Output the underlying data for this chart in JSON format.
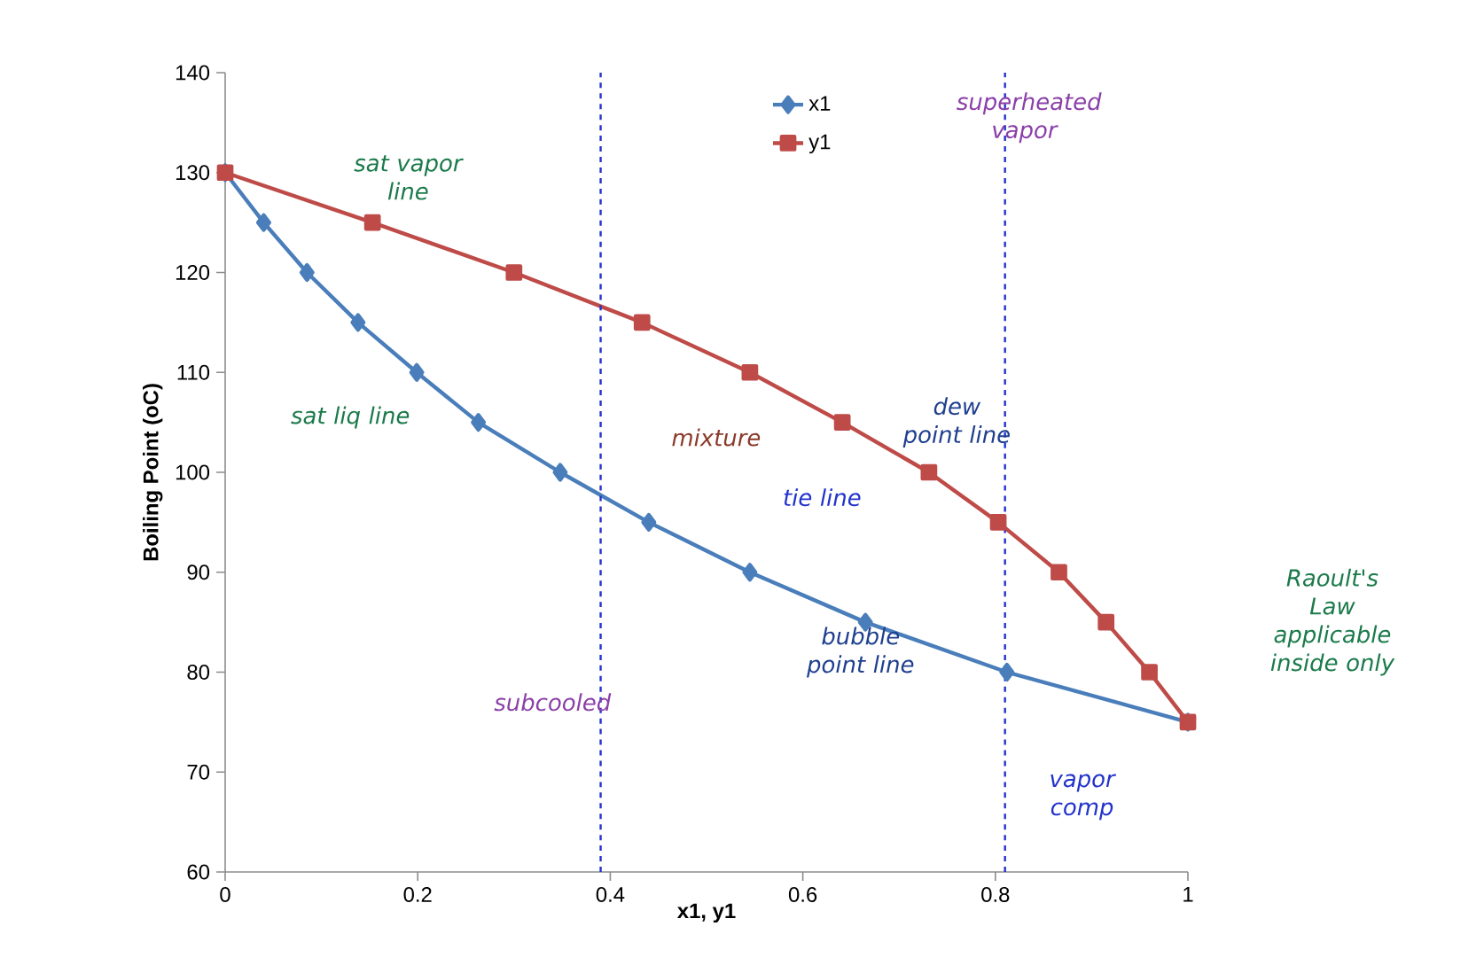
{
  "chart_data": {
    "type": "line",
    "xlabel": "x1, y1",
    "ylabel": "Boiling Point (oC)",
    "xlim": [
      0,
      1
    ],
    "ylim": [
      60,
      140
    ],
    "xticks": [
      0,
      0.2,
      0.4,
      0.6,
      0.8,
      1
    ],
    "yticks": [
      60,
      70,
      80,
      90,
      100,
      110,
      120,
      130,
      140
    ],
    "legend": "top",
    "line_style": "solid",
    "series": [
      {
        "name": "x1",
        "color": "#4a7ebb",
        "marker": "diamond",
        "x": [
          0,
          0.04,
          0.085,
          0.138,
          0.199,
          0.263,
          0.348,
          0.44,
          0.545,
          0.665,
          0.812,
          1
        ],
        "values": [
          130,
          125,
          120,
          115,
          110,
          105,
          100,
          95,
          90,
          85,
          80,
          75
        ]
      },
      {
        "name": "y1",
        "color": "#be4b48",
        "marker": "square",
        "x": [
          0,
          0.153,
          0.3,
          0.433,
          0.545,
          0.641,
          0.731,
          0.803,
          0.866,
          0.915,
          0.96,
          1
        ],
        "values": [
          130,
          125,
          120,
          115,
          110,
          105,
          100,
          95,
          90,
          85,
          80,
          75
        ]
      }
    ],
    "ref_lines": [
      {
        "axis": "x",
        "value": 0.39,
        "color": "#2233cc",
        "line_style": "dashed"
      },
      {
        "axis": "x",
        "value": 0.81,
        "color": "#2233cc",
        "line_style": "dashed"
      }
    ],
    "annotations": [
      "sat vapor line",
      "superheated vapor",
      "sat liq line",
      "mixture",
      "tie line",
      "dew point line",
      "Raoult's Law applicable inside only",
      "bubble point line",
      "subcooled",
      "vapor comp"
    ]
  }
}
